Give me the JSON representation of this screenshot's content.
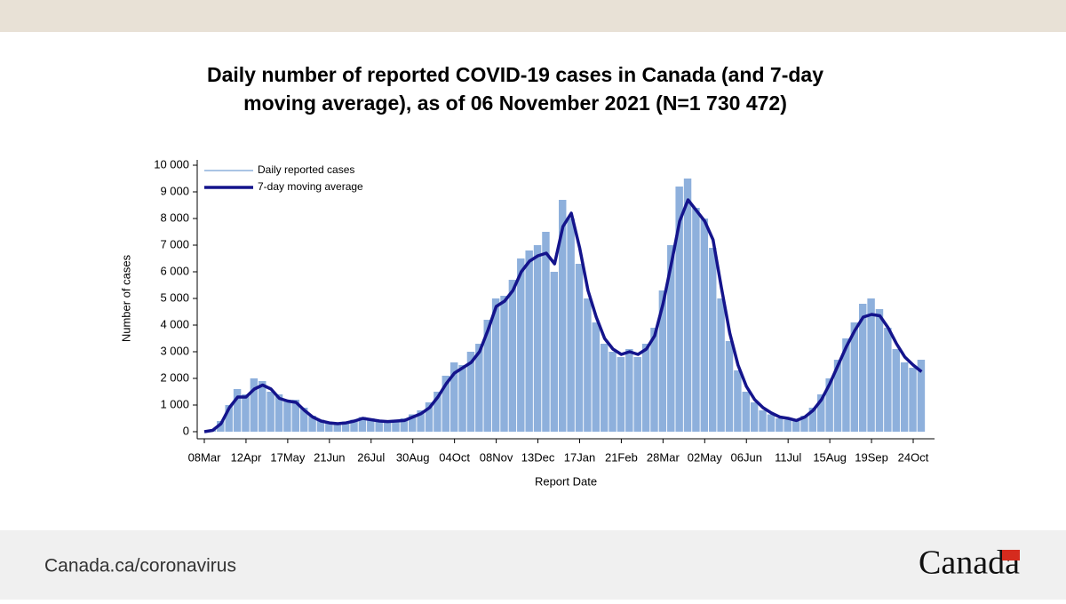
{
  "chart_data": {
    "type": "bar-line",
    "title": "Daily number of reported COVID-19 cases in Canada (and 7-day",
    "subtitle": "moving average), as of 06 November 2021 (N=1 730 472)",
    "x_label": "Report Date",
    "y_label": "Number of cases",
    "categories": [
      "08Mar",
      null,
      null,
      null,
      null,
      "12Apr",
      null,
      null,
      null,
      null,
      "17May",
      null,
      null,
      null,
      null,
      "21Jun",
      null,
      null,
      null,
      null,
      "26Jul",
      null,
      null,
      null,
      null,
      "30Aug",
      null,
      null,
      null,
      null,
      "04Oct",
      null,
      null,
      null,
      null,
      "08Nov",
      null,
      null,
      null,
      null,
      "13Dec",
      null,
      null,
      null,
      null,
      "17Jan",
      null,
      null,
      null,
      null,
      "21Feb",
      null,
      null,
      null,
      null,
      "28Mar",
      null,
      null,
      null,
      null,
      "02May",
      null,
      null,
      null,
      null,
      "06Jun",
      null,
      null,
      null,
      null,
      "11Jul",
      null,
      null,
      null,
      null,
      "15Aug",
      null,
      null,
      null,
      null,
      "19Sep",
      null,
      null,
      null,
      null,
      "24Oct",
      null
    ],
    "series": [
      {
        "name": "Daily reported cases",
        "color": "#8eb0dc",
        "kind": "bar",
        "values": [
          0,
          80,
          400,
          1000,
          1600,
          1400,
          2000,
          1900,
          1500,
          1400,
          1200,
          1200,
          900,
          600,
          450,
          350,
          300,
          380,
          450,
          550,
          500,
          450,
          400,
          450,
          500,
          650,
          800,
          1100,
          1500,
          2100,
          2600,
          2500,
          3000,
          3300,
          4200,
          5000,
          5100,
          5700,
          6500,
          6800,
          7000,
          7500,
          6000,
          8700,
          8000,
          6300,
          5000,
          4100,
          3300,
          3000,
          2800,
          3100,
          2800,
          3300,
          3900,
          5300,
          7000,
          9200,
          9500,
          8400,
          8000,
          6900,
          5000,
          3400,
          2300,
          1500,
          1100,
          800,
          650,
          500,
          450,
          400,
          600,
          900,
          1400,
          2000,
          2700,
          3500,
          4100,
          4800,
          5000,
          4600,
          3900,
          3100,
          2600,
          2400,
          2700
        ]
      },
      {
        "name": "7-day moving average",
        "color": "#14148c",
        "kind": "line",
        "values": [
          0,
          50,
          300,
          900,
          1300,
          1300,
          1600,
          1750,
          1600,
          1250,
          1150,
          1100,
          800,
          550,
          400,
          330,
          300,
          330,
          400,
          500,
          450,
          400,
          380,
          400,
          420,
          550,
          680,
          900,
          1300,
          1800,
          2200,
          2400,
          2600,
          3000,
          3800,
          4700,
          4900,
          5300,
          6000,
          6400,
          6600,
          6700,
          6300,
          7700,
          8200,
          6900,
          5300,
          4300,
          3500,
          3100,
          2900,
          3000,
          2900,
          3100,
          3600,
          4800,
          6300,
          7900,
          8700,
          8300,
          7900,
          7200,
          5400,
          3700,
          2500,
          1700,
          1200,
          900,
          700,
          550,
          500,
          420,
          550,
          800,
          1200,
          1800,
          2500,
          3200,
          3800,
          4300,
          4400,
          4350,
          3900,
          3300,
          2800,
          2500,
          2250
        ]
      }
    ],
    "ylim": [
      0,
      10000
    ],
    "yticks": [
      0,
      {
        "value": 1000,
        "label": "1 000"
      },
      {
        "value": 2000,
        "label": "2 000"
      },
      {
        "value": 3000,
        "label": "3 000"
      },
      {
        "value": 4000,
        "label": "4 000"
      },
      {
        "value": 5000,
        "label": "5 000"
      },
      {
        "value": 6000,
        "label": "6 000"
      },
      {
        "value": 7000,
        "label": "7 000"
      },
      {
        "value": 8000,
        "label": "8 000"
      },
      {
        "value": 9000,
        "label": "9 000"
      },
      {
        "value": 10000,
        "label": "10 000"
      }
    ],
    "legend": "top-left",
    "grid": false
  },
  "footer": {
    "url": "Canada.ca/coronavirus",
    "wordmark": "Canada"
  }
}
